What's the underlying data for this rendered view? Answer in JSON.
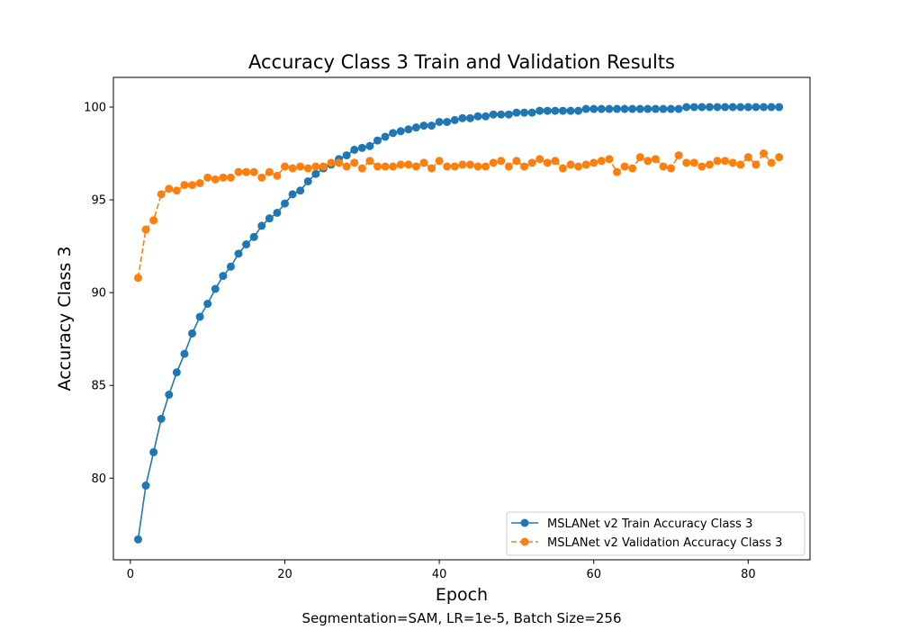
{
  "chart_data": {
    "type": "line",
    "title": "Accuracy Class 3 Train and Validation Results",
    "xlabel": "Epoch",
    "ylabel": "Accuracy Class 3",
    "caption": "Segmentation=SAM, LR=1e-5, Batch Size=256",
    "xlim": [
      -2.2,
      88
    ],
    "ylim": [
      75.6,
      101.6
    ],
    "xticks": [
      0,
      20,
      40,
      60,
      80
    ],
    "yticks": [
      80,
      85,
      90,
      95,
      100
    ],
    "legend_position": "lower-right",
    "grid": false,
    "series": [
      {
        "name": "MSLANet v2 Train Accuracy Class 3",
        "color": "#1f77b4",
        "line_style": "solid",
        "marker": "circle",
        "values": [
          76.7,
          79.6,
          81.4,
          83.2,
          84.5,
          85.7,
          86.7,
          87.8,
          88.7,
          89.4,
          90.2,
          90.9,
          91.4,
          92.1,
          92.6,
          93.0,
          93.6,
          94.0,
          94.3,
          94.8,
          95.3,
          95.5,
          96.0,
          96.4,
          96.7,
          96.9,
          97.2,
          97.4,
          97.7,
          97.8,
          97.9,
          98.2,
          98.4,
          98.6,
          98.7,
          98.8,
          98.9,
          99.0,
          99.0,
          99.2,
          99.2,
          99.3,
          99.4,
          99.4,
          99.5,
          99.5,
          99.6,
          99.6,
          99.6,
          99.7,
          99.7,
          99.7,
          99.8,
          99.8,
          99.8,
          99.8,
          99.8,
          99.8,
          99.9,
          99.9,
          99.9,
          99.9,
          99.9,
          99.9,
          99.9,
          99.9,
          99.9,
          99.9,
          99.9,
          99.9,
          99.9,
          100.0,
          100.0,
          100.0,
          100.0,
          100.0,
          100.0,
          100.0,
          100.0,
          100.0,
          100.0,
          100.0,
          100.0,
          100.0
        ]
      },
      {
        "name": "MSLANet v2 Validation Accuracy Class 3",
        "color": "#ff7f0e",
        "line_style": "dashed",
        "marker": "circle",
        "values": [
          90.8,
          93.4,
          93.9,
          95.3,
          95.6,
          95.5,
          95.8,
          95.8,
          95.9,
          96.2,
          96.1,
          96.2,
          96.2,
          96.5,
          96.5,
          96.5,
          96.2,
          96.5,
          96.3,
          96.8,
          96.7,
          96.8,
          96.7,
          96.8,
          96.8,
          97.0,
          97.0,
          96.8,
          97.0,
          96.7,
          97.1,
          96.8,
          96.8,
          96.8,
          96.9,
          96.9,
          96.8,
          97.0,
          96.7,
          97.1,
          96.8,
          96.8,
          96.9,
          96.9,
          96.8,
          96.8,
          97.0,
          97.1,
          96.8,
          97.1,
          96.8,
          97.0,
          97.2,
          97.0,
          97.1,
          96.7,
          96.9,
          96.8,
          96.9,
          97.0,
          97.1,
          97.2,
          96.5,
          96.8,
          96.7,
          97.3,
          97.1,
          97.2,
          96.8,
          96.7,
          97.4,
          97.0,
          97.0,
          96.8,
          96.9,
          97.1,
          97.1,
          97.0,
          96.9,
          97.3,
          96.9,
          97.5,
          97.0,
          97.3
        ]
      }
    ]
  }
}
